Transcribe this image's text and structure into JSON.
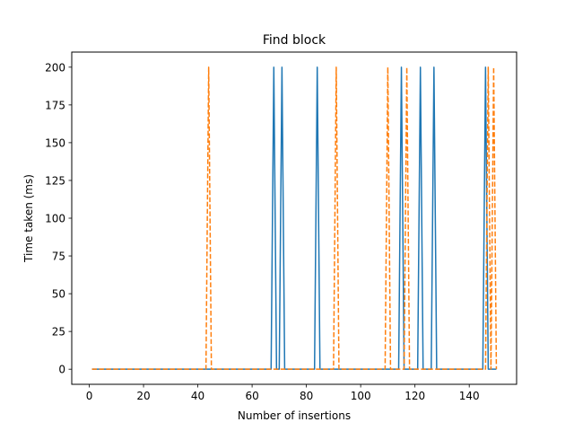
{
  "chart_data": {
    "type": "line",
    "title": "Find block",
    "xlabel": "Number of insertions",
    "ylabel": "Time taken (ms)",
    "xlim": [
      -6.45,
      157.45
    ],
    "ylim": [
      -10,
      210
    ],
    "xticks": [
      0,
      20,
      40,
      60,
      80,
      100,
      120,
      140
    ],
    "yticks": [
      0,
      25,
      50,
      75,
      100,
      125,
      150,
      175,
      200
    ],
    "grid": false,
    "series": [
      {
        "color": "#1f77b4",
        "style": "solid",
        "x": [
          1,
          67,
          68,
          69,
          70,
          71,
          72,
          83,
          84,
          85,
          114,
          115,
          116,
          121,
          122,
          123,
          126,
          127,
          128,
          145,
          146,
          147,
          150
        ],
        "y": [
          0,
          0,
          200,
          0,
          0,
          200,
          0,
          0,
          200,
          0,
          0,
          200,
          0,
          0,
          200,
          0,
          0,
          200,
          0,
          0,
          200,
          0,
          0
        ]
      },
      {
        "color": "#ff7f0e",
        "style": "dashed",
        "x": [
          1,
          43,
          44,
          45,
          90,
          91,
          92,
          109,
          110,
          111,
          116,
          117,
          118,
          146,
          147,
          148,
          149,
          150
        ],
        "y": [
          0,
          0,
          200,
          0,
          0,
          200,
          0,
          0,
          200,
          0,
          0,
          200,
          0,
          0,
          200,
          0,
          200,
          0
        ]
      }
    ]
  }
}
